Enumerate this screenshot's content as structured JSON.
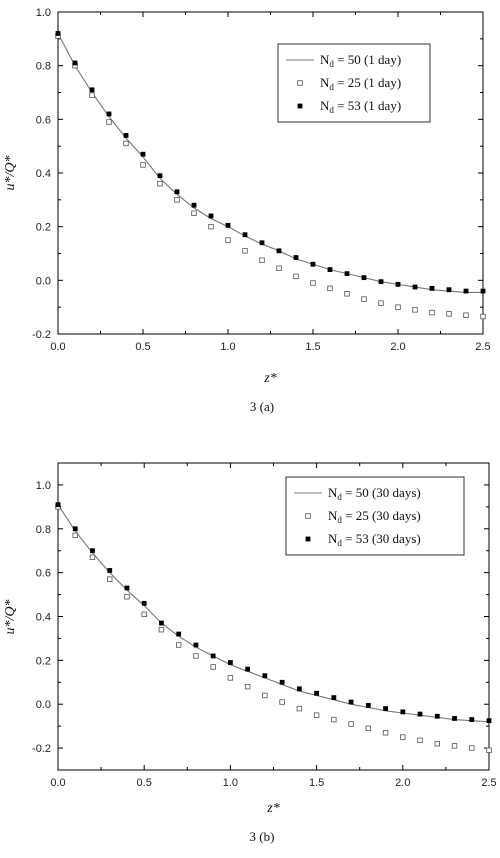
{
  "chart_data": [
    {
      "type": "line",
      "caption": "3 (a)",
      "xlabel": "z*",
      "ylabel": "u*/Q*",
      "xlim": [
        0,
        2.5
      ],
      "ylim": [
        -0.2,
        1.0
      ],
      "xticks": [
        "0.0",
        "0.5",
        "1.0",
        "1.5",
        "2.0",
        "2.5"
      ],
      "yticks": [
        "-0.2",
        "0.0",
        "0.2",
        "0.4",
        "0.6",
        "0.8",
        "1.0"
      ],
      "legend_position": "top-right",
      "series": [
        {
          "name": "N_d = 50 (1 day)",
          "name_main": "N",
          "name_sub": "d",
          "name_rest": " = 50 (1 day)",
          "style": "line",
          "x": [
            0,
            0.1,
            0.2,
            0.3,
            0.4,
            0.5,
            0.6,
            0.7,
            0.8,
            0.9,
            1.0,
            1.1,
            1.2,
            1.3,
            1.4,
            1.5,
            1.6,
            1.7,
            1.8,
            1.9,
            2.0,
            2.1,
            2.2,
            2.3,
            2.4,
            2.5
          ],
          "y": [
            0.92,
            0.8,
            0.7,
            0.61,
            0.53,
            0.46,
            0.38,
            0.32,
            0.27,
            0.23,
            0.2,
            0.165,
            0.135,
            0.11,
            0.08,
            0.06,
            0.04,
            0.025,
            0.01,
            -0.005,
            -0.015,
            -0.025,
            -0.035,
            -0.04,
            -0.045,
            -0.045
          ]
        },
        {
          "name": "N_d = 25 (1 day)",
          "name_main": "N",
          "name_sub": "d",
          "name_rest": " = 25 (1 day)",
          "style": "open-square",
          "x": [
            0,
            0.1,
            0.2,
            0.3,
            0.4,
            0.5,
            0.6,
            0.7,
            0.8,
            0.9,
            1.0,
            1.1,
            1.2,
            1.3,
            1.4,
            1.5,
            1.6,
            1.7,
            1.8,
            1.9,
            2.0,
            2.1,
            2.2,
            2.3,
            2.4,
            2.5
          ],
          "y": [
            0.91,
            0.8,
            0.69,
            0.59,
            0.51,
            0.43,
            0.36,
            0.3,
            0.25,
            0.2,
            0.15,
            0.11,
            0.075,
            0.045,
            0.015,
            -0.01,
            -0.03,
            -0.05,
            -0.07,
            -0.085,
            -0.1,
            -0.11,
            -0.12,
            -0.125,
            -0.13,
            -0.135
          ]
        },
        {
          "name": "N_d = 53 (1 day)",
          "name_main": "N",
          "name_sub": "d",
          "name_rest": " = 53 (1 day)",
          "style": "filled-square",
          "x": [
            0,
            0.1,
            0.2,
            0.3,
            0.4,
            0.5,
            0.6,
            0.7,
            0.8,
            0.9,
            1.0,
            1.1,
            1.2,
            1.3,
            1.4,
            1.5,
            1.6,
            1.7,
            1.8,
            1.9,
            2.0,
            2.1,
            2.2,
            2.3,
            2.4,
            2.5
          ],
          "y": [
            0.92,
            0.81,
            0.71,
            0.62,
            0.54,
            0.47,
            0.39,
            0.33,
            0.28,
            0.24,
            0.205,
            0.17,
            0.14,
            0.11,
            0.085,
            0.06,
            0.04,
            0.025,
            0.01,
            -0.005,
            -0.015,
            -0.025,
            -0.03,
            -0.035,
            -0.04,
            -0.04
          ]
        }
      ]
    },
    {
      "type": "line",
      "caption": "3 (b)",
      "xlabel": "z*",
      "ylabel": "u*/Q*",
      "xlim": [
        0,
        2.5
      ],
      "ylim": [
        -0.3,
        1.1
      ],
      "xticks": [
        "0.0",
        "0.5",
        "1.0",
        "1.5",
        "2.0",
        "2.5"
      ],
      "yticks": [
        "-0.2",
        "0.0",
        "0.2",
        "0.4",
        "0.6",
        "0.8",
        "1.0"
      ],
      "legend_position": "top-right",
      "series": [
        {
          "name": "N_d = 50 (30 days)",
          "name_main": "N",
          "name_sub": "d",
          "name_rest": " = 50 (30 days)",
          "style": "line",
          "x": [
            0,
            0.1,
            0.2,
            0.3,
            0.4,
            0.5,
            0.6,
            0.7,
            0.8,
            0.9,
            1.0,
            1.1,
            1.2,
            1.3,
            1.4,
            1.5,
            1.6,
            1.7,
            1.8,
            1.9,
            2.0,
            2.1,
            2.2,
            2.3,
            2.4,
            2.5
          ],
          "y": [
            0.91,
            0.79,
            0.69,
            0.6,
            0.52,
            0.45,
            0.37,
            0.31,
            0.26,
            0.22,
            0.18,
            0.15,
            0.12,
            0.09,
            0.06,
            0.04,
            0.02,
            0.0,
            -0.015,
            -0.03,
            -0.04,
            -0.05,
            -0.06,
            -0.07,
            -0.075,
            -0.08
          ]
        },
        {
          "name": "N_d = 25 (30 days)",
          "name_main": "N",
          "name_sub": "d",
          "name_rest": " = 25 (30 days)",
          "style": "open-square",
          "x": [
            0,
            0.1,
            0.2,
            0.3,
            0.4,
            0.5,
            0.6,
            0.7,
            0.8,
            0.9,
            1.0,
            1.1,
            1.2,
            1.3,
            1.4,
            1.5,
            1.6,
            1.7,
            1.8,
            1.9,
            2.0,
            2.1,
            2.2,
            2.3,
            2.4,
            2.5
          ],
          "y": [
            0.9,
            0.77,
            0.67,
            0.57,
            0.49,
            0.41,
            0.34,
            0.27,
            0.22,
            0.17,
            0.12,
            0.08,
            0.04,
            0.01,
            -0.02,
            -0.05,
            -0.07,
            -0.09,
            -0.11,
            -0.13,
            -0.15,
            -0.165,
            -0.18,
            -0.19,
            -0.2,
            -0.21
          ]
        },
        {
          "name": "N_d = 53 (30 days)",
          "name_main": "N",
          "name_sub": "d",
          "name_rest": " = 53 (30 days)",
          "style": "filled-square",
          "x": [
            0,
            0.1,
            0.2,
            0.3,
            0.4,
            0.5,
            0.6,
            0.7,
            0.8,
            0.9,
            1.0,
            1.1,
            1.2,
            1.3,
            1.4,
            1.5,
            1.6,
            1.7,
            1.8,
            1.9,
            2.0,
            2.1,
            2.2,
            2.3,
            2.4,
            2.5
          ],
          "y": [
            0.91,
            0.8,
            0.7,
            0.61,
            0.53,
            0.46,
            0.37,
            0.32,
            0.27,
            0.22,
            0.19,
            0.16,
            0.13,
            0.1,
            0.07,
            0.05,
            0.03,
            0.01,
            -0.005,
            -0.02,
            -0.035,
            -0.045,
            -0.055,
            -0.065,
            -0.07,
            -0.075
          ]
        }
      ]
    }
  ]
}
